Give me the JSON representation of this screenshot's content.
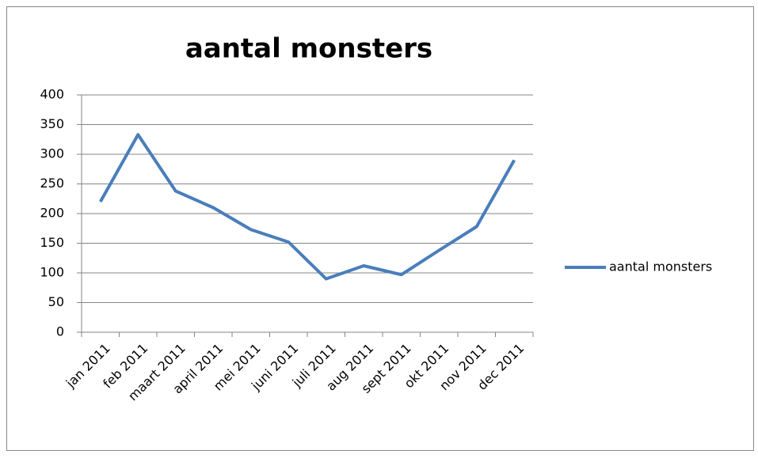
{
  "chart_data": {
    "type": "line",
    "title": "aantal monsters",
    "categories": [
      "jan 2011",
      "feb 2011",
      "maart 2011",
      "april 2011",
      "mei 2011",
      "juni 2011",
      "juli 2011",
      "aug 2011",
      "sept 2011",
      "okt 2011",
      "nov 2011",
      "dec 2011"
    ],
    "series": [
      {
        "name": "aantal monsters",
        "color": "#4a7ebb",
        "values": [
          220,
          333,
          238,
          210,
          173,
          152,
          90,
          112,
          97,
          138,
          178,
          290
        ]
      }
    ],
    "ylim": [
      0,
      400
    ],
    "yticks": [
      0,
      50,
      100,
      150,
      200,
      250,
      300,
      350,
      400
    ],
    "grid": true,
    "legend": "right"
  }
}
